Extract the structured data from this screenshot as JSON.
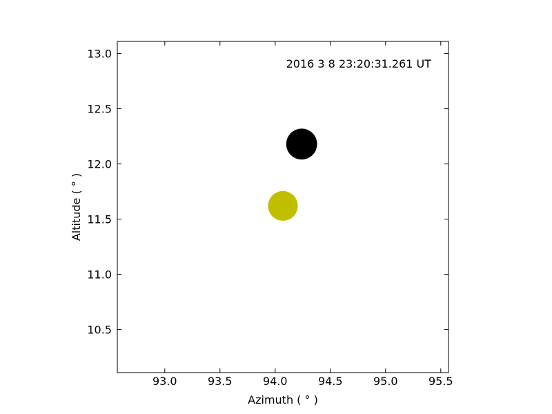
{
  "chart_data": {
    "type": "scatter",
    "title": "",
    "xlabel": "Azimuth ( ° )",
    "ylabel": "Altitude ( ° )",
    "xlim": [
      92.57,
      95.57
    ],
    "ylim": [
      10.11,
      13.11
    ],
    "xticks": [
      93.0,
      93.5,
      94.0,
      94.5,
      95.0,
      95.5
    ],
    "xtick_labels": [
      "93.0",
      "93.5",
      "94.0",
      "94.5",
      "95.0",
      "95.5"
    ],
    "yticks": [
      10.5,
      11.0,
      11.5,
      12.0,
      12.5,
      13.0
    ],
    "ytick_labels": [
      "10.5",
      "11.0",
      "11.5",
      "12.0",
      "12.5",
      "13.0"
    ],
    "grid": false,
    "annotation": "2016 3 8 23:20:31.261 UT",
    "series": [
      {
        "color": "#000000",
        "points": [
          {
            "x": 94.24,
            "y": 12.18,
            "diameter": 0.28
          }
        ]
      },
      {
        "color": "#bfbf00",
        "points": [
          {
            "x": 94.07,
            "y": 11.62,
            "diameter": 0.27
          }
        ]
      }
    ]
  }
}
